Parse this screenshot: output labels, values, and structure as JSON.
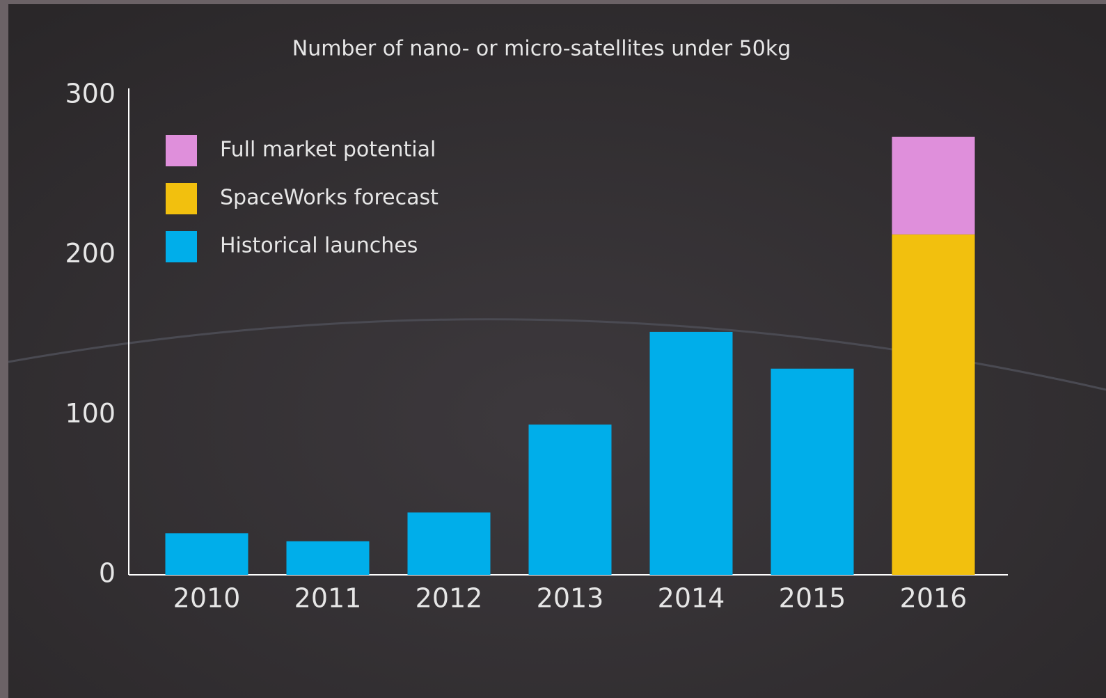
{
  "chart_data": {
    "type": "bar",
    "stacked": true,
    "title": "Number of nano- or micro-satellites under 50kg",
    "categories": [
      "2010",
      "2011",
      "2012",
      "2013",
      "2014",
      "2015",
      "2016"
    ],
    "series": [
      {
        "name": "Historical launches",
        "color": "#00aeea",
        "values": [
          26,
          21,
          39,
          94,
          152,
          129,
          null
        ]
      },
      {
        "name": "SpaceWorks forecast",
        "color": "#f2c00e",
        "values": [
          null,
          null,
          null,
          null,
          null,
          null,
          213
        ]
      },
      {
        "name": "Full market potential",
        "color": "#df8fdb",
        "values": [
          null,
          null,
          null,
          null,
          null,
          null,
          61
        ]
      }
    ],
    "ylim": [
      0,
      300
    ],
    "yticks": [
      0,
      100,
      200,
      300
    ],
    "grid": false
  }
}
